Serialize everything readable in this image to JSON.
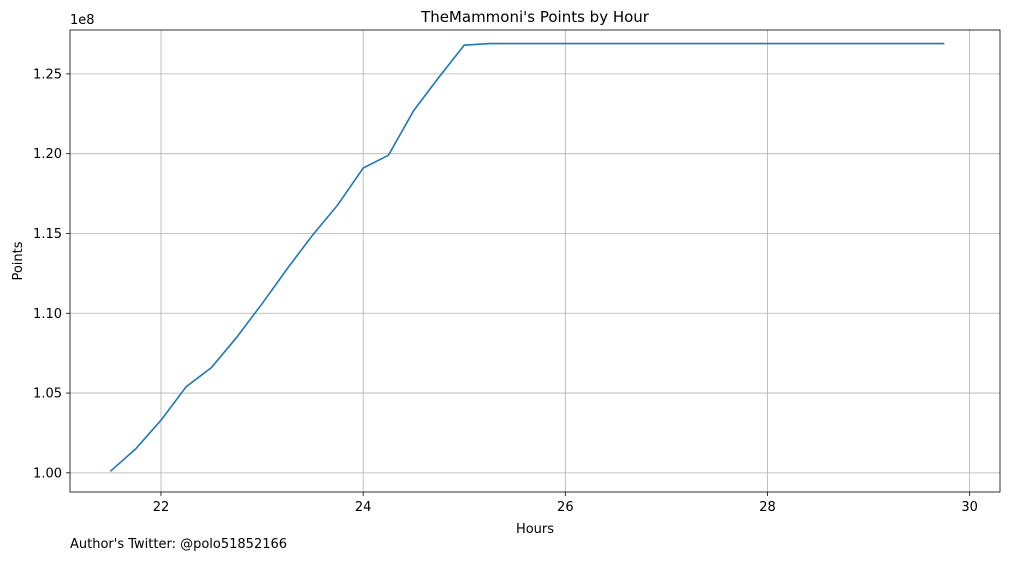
{
  "chart_data": {
    "type": "line",
    "title": "TheMammoni's Points by Hour",
    "xlabel": "Hours",
    "ylabel": "Points",
    "y_offset_label": "1e8",
    "xlim": [
      21.1,
      30.3
    ],
    "ylim": [
      0.988,
      1.2775
    ],
    "x_ticks": [
      22,
      24,
      26,
      28,
      30
    ],
    "x_tick_labels": [
      "22",
      "24",
      "26",
      "28",
      "30"
    ],
    "y_ticks": [
      1.0,
      1.05,
      1.1,
      1.15,
      1.2,
      1.25
    ],
    "y_tick_labels": [
      "1.00",
      "1.05",
      "1.10",
      "1.15",
      "1.20",
      "1.25"
    ],
    "grid": true,
    "line_color": "#1f77b4",
    "series": [
      {
        "x": [
          21.5,
          21.75,
          22.0,
          22.25,
          22.5,
          22.75,
          23.0,
          23.25,
          23.5,
          23.75,
          24.0,
          24.25,
          24.5,
          24.75,
          25.0,
          25.25,
          25.5,
          25.75,
          26.0,
          26.25,
          26.5,
          26.75,
          27.0,
          27.25,
          27.5,
          27.75,
          28.0,
          28.25,
          28.5,
          28.75,
          29.0,
          29.25,
          29.5,
          29.75
        ],
        "y": [
          1.001,
          1.015,
          1.033,
          1.054,
          1.066,
          1.085,
          1.106,
          1.128,
          1.149,
          1.168,
          1.191,
          1.199,
          1.227,
          1.248,
          1.268,
          1.269,
          1.269,
          1.269,
          1.269,
          1.269,
          1.269,
          1.269,
          1.269,
          1.269,
          1.269,
          1.269,
          1.269,
          1.269,
          1.269,
          1.269,
          1.269,
          1.269,
          1.269,
          1.269
        ]
      }
    ]
  },
  "footer": {
    "author_text": "Author's Twitter: @polo51852166"
  }
}
